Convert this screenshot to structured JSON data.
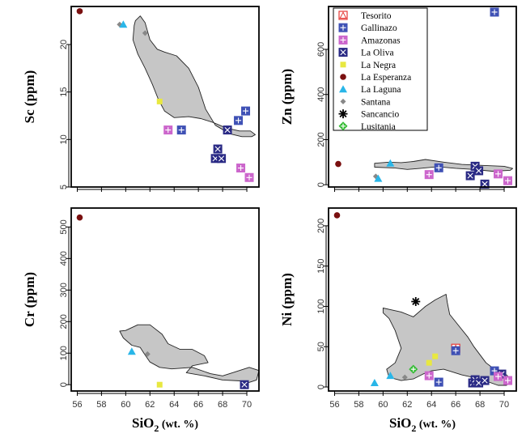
{
  "chart_data": {
    "type": "scatter",
    "x_label": {
      "prefix": "SiO",
      "sub": "2",
      "suffix": " (wt. %)"
    },
    "x_ticks": [
      56,
      58,
      60,
      62,
      64,
      66,
      68,
      70
    ],
    "legend": [
      {
        "name": "Tesorito",
        "marker": "tesorito",
        "color": "#e53935"
      },
      {
        "name": "Gallinazo",
        "marker": "box-plus",
        "color": "#3f51b5"
      },
      {
        "name": "Amazonas",
        "marker": "box-plus",
        "color": "#cc66cc"
      },
      {
        "name": "La Oliva",
        "marker": "box-x",
        "color": "#2a2a85"
      },
      {
        "name": "La Negra",
        "marker": "square",
        "color": "#e8e840"
      },
      {
        "name": "La Esperanza",
        "marker": "circle",
        "color": "#7a1010"
      },
      {
        "name": "La Laguna",
        "marker": "triangle",
        "color": "#29b6e8"
      },
      {
        "name": "Santana",
        "marker": "diamond",
        "color": "#888888"
      },
      {
        "name": "Sancancio",
        "marker": "star",
        "color": "#000000"
      },
      {
        "name": "Lusitania",
        "marker": "diamond-plus",
        "color": "#33bb33"
      }
    ],
    "panels": [
      {
        "id": "sc",
        "y_label": "Sc (ppm)",
        "xlim": [
          55.5,
          71
        ],
        "ylim": [
          5,
          24
        ],
        "y_ticks": [
          5,
          10,
          15,
          20
        ],
        "field": [
          [
            60.8,
            22.5
          ],
          [
            61.2,
            23.0
          ],
          [
            61.6,
            22.3
          ],
          [
            62.0,
            20.5
          ],
          [
            62.6,
            19.5
          ],
          [
            63.2,
            19.2
          ],
          [
            64.2,
            18.8
          ],
          [
            65.2,
            17.5
          ],
          [
            66.0,
            15.5
          ],
          [
            66.6,
            13.2
          ],
          [
            67.4,
            11.5
          ],
          [
            68.6,
            10.6
          ],
          [
            69.6,
            10.3
          ],
          [
            70.4,
            10.3
          ],
          [
            70.7,
            10.5
          ],
          [
            70.3,
            10.9
          ],
          [
            69.4,
            10.9
          ],
          [
            68.3,
            11.2
          ],
          [
            67.2,
            11.8
          ],
          [
            66.2,
            12.2
          ],
          [
            65.2,
            12.4
          ],
          [
            64.0,
            12.3
          ],
          [
            63.2,
            13.0
          ],
          [
            62.7,
            14.2
          ],
          [
            62.2,
            15.8
          ],
          [
            61.6,
            17.5
          ],
          [
            61.0,
            19.0
          ],
          [
            60.6,
            20.5
          ],
          [
            60.7,
            22.0
          ]
        ],
        "points": [
          {
            "s": "La Esperanza",
            "x": 56.2,
            "y": 23.5
          },
          {
            "s": "Santana",
            "x": 59.5,
            "y": 22.1
          },
          {
            "s": "La Laguna",
            "x": 59.8,
            "y": 22.1
          },
          {
            "s": "Santana",
            "x": 61.6,
            "y": 21.2
          },
          {
            "s": "La Negra",
            "x": 62.8,
            "y": 14.0
          },
          {
            "s": "Amazonas",
            "x": 63.5,
            "y": 11.0
          },
          {
            "s": "Gallinazo",
            "x": 64.6,
            "y": 11.0
          },
          {
            "s": "La Oliva",
            "x": 67.4,
            "y": 8.0
          },
          {
            "s": "La Oliva",
            "x": 67.6,
            "y": 9.0
          },
          {
            "s": "La Oliva",
            "x": 67.9,
            "y": 8.0
          },
          {
            "s": "La Oliva",
            "x": 68.4,
            "y": 11.0
          },
          {
            "s": "Gallinazo",
            "x": 69.3,
            "y": 12.0
          },
          {
            "s": "Gallinazo",
            "x": 69.9,
            "y": 13.0
          },
          {
            "s": "Amazonas",
            "x": 69.5,
            "y": 7.0
          },
          {
            "s": "Amazonas",
            "x": 70.2,
            "y": 6.0
          }
        ]
      },
      {
        "id": "zn",
        "y_label": "Zn (ppm)",
        "xlim": [
          55.5,
          71
        ],
        "ylim": [
          -10,
          790
        ],
        "y_ticks": [
          0,
          200,
          400,
          600
        ],
        "field": [
          [
            59.3,
            95
          ],
          [
            59.3,
            78
          ],
          [
            61.0,
            74
          ],
          [
            62.0,
            68
          ],
          [
            63.0,
            72
          ],
          [
            64.5,
            80
          ],
          [
            66.0,
            73
          ],
          [
            67.5,
            68
          ],
          [
            69.0,
            60
          ],
          [
            70.5,
            64
          ],
          [
            70.7,
            72
          ],
          [
            70.0,
            82
          ],
          [
            68.0,
            86
          ],
          [
            66.5,
            90
          ],
          [
            65.0,
            100
          ],
          [
            63.5,
            112
          ],
          [
            62.5,
            103
          ],
          [
            61.5,
            98
          ],
          [
            60.5,
            100
          ]
        ],
        "points": [
          {
            "s": "Gallinazo",
            "x": 69.2,
            "y": 765
          },
          {
            "s": "La Esperanza",
            "x": 56.3,
            "y": 92
          },
          {
            "s": "La Laguna",
            "x": 60.6,
            "y": 95
          },
          {
            "s": "Santana",
            "x": 59.4,
            "y": 37
          },
          {
            "s": "La Laguna",
            "x": 59.6,
            "y": 27
          },
          {
            "s": "Amazonas",
            "x": 63.8,
            "y": 45
          },
          {
            "s": "Gallinazo",
            "x": 64.6,
            "y": 75
          },
          {
            "s": "La Oliva",
            "x": 67.2,
            "y": 40
          },
          {
            "s": "La Oliva",
            "x": 67.6,
            "y": 82
          },
          {
            "s": "La Oliva",
            "x": 67.9,
            "y": 62
          },
          {
            "s": "La Oliva",
            "x": 68.4,
            "y": 3
          },
          {
            "s": "Amazonas",
            "x": 69.5,
            "y": 48
          },
          {
            "s": "Amazonas",
            "x": 70.3,
            "y": 18
          }
        ]
      },
      {
        "id": "cr",
        "y_label": "Cr (ppm)",
        "xlim": [
          55.5,
          71
        ],
        "ylim": [
          -20,
          560
        ],
        "y_ticks": [
          0,
          100,
          200,
          300,
          400,
          500
        ],
        "field": [
          [
            59.5,
            170
          ],
          [
            59.8,
            148
          ],
          [
            60.5,
            125
          ],
          [
            61.2,
            118
          ],
          [
            61.5,
            100
          ],
          [
            62.0,
            72
          ],
          [
            62.8,
            55
          ],
          [
            63.8,
            50
          ],
          [
            65.5,
            55
          ],
          [
            67.0,
            35
          ],
          [
            68.0,
            28
          ],
          [
            69.0,
            40
          ],
          [
            70.2,
            55
          ],
          [
            71.0,
            45
          ],
          [
            70.8,
            15
          ],
          [
            70.0,
            5
          ],
          [
            69.5,
            12
          ],
          [
            68.0,
            15
          ],
          [
            66.5,
            28
          ],
          [
            65.0,
            38
          ],
          [
            65.5,
            60
          ],
          [
            66.8,
            70
          ],
          [
            66.5,
            92
          ],
          [
            65.5,
            112
          ],
          [
            64.5,
            112
          ],
          [
            63.5,
            130
          ],
          [
            63.0,
            160
          ],
          [
            62.0,
            190
          ],
          [
            61.0,
            190
          ],
          [
            60.0,
            172
          ]
        ],
        "points": [
          {
            "s": "La Esperanza",
            "x": 56.2,
            "y": 530
          },
          {
            "s": "La Laguna",
            "x": 60.5,
            "y": 105
          },
          {
            "s": "Santana",
            "x": 61.8,
            "y": 97
          },
          {
            "s": "La Negra",
            "x": 62.8,
            "y": 0
          },
          {
            "s": "La Oliva",
            "x": 69.8,
            "y": 0
          }
        ]
      },
      {
        "id": "ni",
        "y_label": "Ni (ppm)",
        "xlim": [
          55.5,
          71
        ],
        "ylim": [
          -5,
          222
        ],
        "y_ticks": [
          0,
          50,
          100,
          150,
          200
        ],
        "field": [
          [
            60.0,
            98
          ],
          [
            61.5,
            93
          ],
          [
            62.5,
            87
          ],
          [
            63.5,
            100
          ],
          [
            64.3,
            108
          ],
          [
            65.2,
            115
          ],
          [
            65.3,
            105
          ],
          [
            65.5,
            90
          ],
          [
            66.3,
            75
          ],
          [
            67.0,
            62
          ],
          [
            67.5,
            50
          ],
          [
            68.0,
            40
          ],
          [
            68.5,
            30
          ],
          [
            69.2,
            22
          ],
          [
            70.2,
            15
          ],
          [
            70.5,
            10
          ],
          [
            70.2,
            2
          ],
          [
            69.5,
            2
          ],
          [
            68.0,
            10
          ],
          [
            66.5,
            15
          ],
          [
            65.0,
            22
          ],
          [
            64.0,
            20
          ],
          [
            63.3,
            16
          ],
          [
            62.5,
            10
          ],
          [
            61.5,
            8
          ],
          [
            60.5,
            12
          ],
          [
            60.3,
            22
          ],
          [
            61.0,
            30
          ],
          [
            61.5,
            48
          ],
          [
            61.0,
            70
          ],
          [
            60.5,
            85
          ],
          [
            60.0,
            92
          ]
        ],
        "points": [
          {
            "s": "La Esperanza",
            "x": 56.2,
            "y": 213
          },
          {
            "s": "Sancancio",
            "x": 62.7,
            "y": 106
          },
          {
            "s": "Tesorito",
            "x": 66.0,
            "y": 48
          },
          {
            "s": "Gallinazo",
            "x": 66.0,
            "y": 45
          },
          {
            "s": "La Negra",
            "x": 64.3,
            "y": 38
          },
          {
            "s": "La Negra",
            "x": 63.8,
            "y": 30
          },
          {
            "s": "Lusitania",
            "x": 62.5,
            "y": 22
          },
          {
            "s": "Santana",
            "x": 61.8,
            "y": 12
          },
          {
            "s": "La Laguna",
            "x": 60.6,
            "y": 14
          },
          {
            "s": "La Laguna",
            "x": 59.3,
            "y": 5
          },
          {
            "s": "Amazonas",
            "x": 63.8,
            "y": 14
          },
          {
            "s": "Gallinazo",
            "x": 64.6,
            "y": 6
          },
          {
            "s": "La Oliva",
            "x": 67.4,
            "y": 5
          },
          {
            "s": "La Oliva",
            "x": 67.6,
            "y": 9
          },
          {
            "s": "La Oliva",
            "x": 67.9,
            "y": 5
          },
          {
            "s": "La Oliva",
            "x": 68.4,
            "y": 8
          },
          {
            "s": "Gallinazo",
            "x": 69.2,
            "y": 20
          },
          {
            "s": "La Oliva",
            "x": 69.8,
            "y": 16
          },
          {
            "s": "Amazonas",
            "x": 69.5,
            "y": 13
          },
          {
            "s": "Amazonas",
            "x": 70.3,
            "y": 8
          }
        ]
      }
    ]
  }
}
